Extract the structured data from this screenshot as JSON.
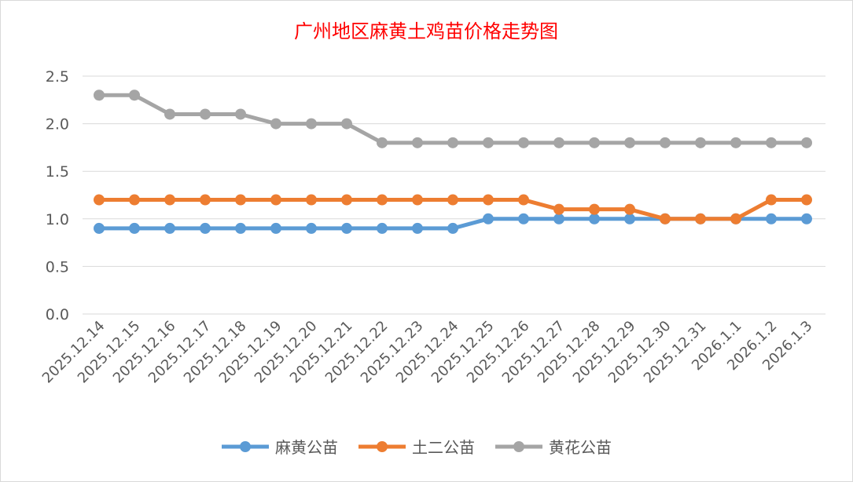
{
  "chart_data": {
    "type": "line",
    "title": "广州地区麻黄土鸡苗价格走势图",
    "xlabel": "",
    "ylabel": "",
    "ylim": [
      0,
      2.5
    ],
    "yticks": [
      "0.0",
      "0.5",
      "1.0",
      "1.5",
      "2.0",
      "2.5"
    ],
    "grid": true,
    "legend_position": "bottom",
    "categories": [
      "2025.12.14",
      "2025.12.15",
      "2025.12.16",
      "2025.12.17",
      "2025.12.18",
      "2025.12.19",
      "2025.12.20",
      "2025.12.21",
      "2025.12.22",
      "2025.12.23",
      "2025.12.24",
      "2025.12.25",
      "2025.12.26",
      "2025.12.27",
      "2025.12.28",
      "2025.12.29",
      "2025.12.30",
      "2025.12.31",
      "2026.1.1",
      "2026.1.2",
      "2026.1.3"
    ],
    "series": [
      {
        "name": "麻黄公苗",
        "color": "#5b9bd5",
        "values": [
          0.9,
          0.9,
          0.9,
          0.9,
          0.9,
          0.9,
          0.9,
          0.9,
          0.9,
          0.9,
          0.9,
          1.0,
          1.0,
          1.0,
          1.0,
          1.0,
          1.0,
          1.0,
          1.0,
          1.0,
          1.0
        ]
      },
      {
        "name": "土二公苗",
        "color": "#ed7d31",
        "values": [
          1.2,
          1.2,
          1.2,
          1.2,
          1.2,
          1.2,
          1.2,
          1.2,
          1.2,
          1.2,
          1.2,
          1.2,
          1.2,
          1.1,
          1.1,
          1.1,
          1.0,
          1.0,
          1.0,
          1.2,
          1.2
        ]
      },
      {
        "name": "黄花公苗",
        "color": "#a5a5a5",
        "values": [
          2.3,
          2.3,
          2.1,
          2.1,
          2.1,
          2.0,
          2.0,
          2.0,
          1.8,
          1.8,
          1.8,
          1.8,
          1.8,
          1.8,
          1.8,
          1.8,
          1.8,
          1.8,
          1.8,
          1.8,
          1.8
        ]
      }
    ]
  }
}
